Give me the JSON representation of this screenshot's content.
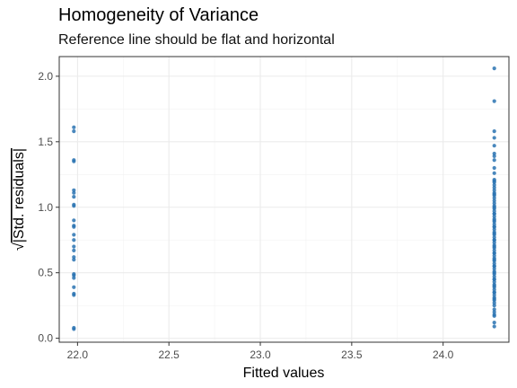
{
  "chart_data": {
    "type": "scatter",
    "title": "Homogeneity of Variance",
    "subtitle": "Reference line should be flat and horizontal",
    "xlabel": "Fitted values",
    "ylabel_prefix": "√",
    "ylabel": "|Std. residuals|",
    "xlim": [
      21.9,
      24.36
    ],
    "ylim": [
      -0.03,
      2.15
    ],
    "xticks": [
      "22.0",
      "22.5",
      "23.0",
      "23.5",
      "24.0"
    ],
    "yticks": [
      "0.0",
      "0.5",
      "1.0",
      "1.5",
      "2.0"
    ],
    "grid": true,
    "point_color": "#2a73b1",
    "series": [
      {
        "x": [
          21.98,
          21.98,
          21.98,
          21.98,
          21.98,
          21.98,
          21.98,
          21.98,
          21.98,
          21.98,
          21.98,
          21.98,
          21.98,
          21.98,
          21.98,
          21.98,
          21.98,
          21.98,
          21.98,
          21.98,
          21.98,
          21.98,
          21.98,
          21.98,
          21.98,
          21.98,
          24.28,
          24.28,
          24.28,
          24.28,
          24.28,
          24.28,
          24.28,
          24.28,
          24.28,
          24.28,
          24.28,
          24.28,
          24.28,
          24.28,
          24.28,
          24.28,
          24.28,
          24.28,
          24.28,
          24.28,
          24.28,
          24.28,
          24.28,
          24.28,
          24.28,
          24.28,
          24.28,
          24.28,
          24.28,
          24.28,
          24.28,
          24.28,
          24.28,
          24.28,
          24.28,
          24.28,
          24.28,
          24.28,
          24.28,
          24.28,
          24.28,
          24.28,
          24.28,
          24.28,
          24.28,
          24.28,
          24.28,
          24.28,
          24.28,
          24.28,
          24.28,
          24.28,
          24.28,
          24.28,
          24.28,
          24.28,
          24.28,
          24.28,
          24.28,
          24.28,
          24.28,
          24.28,
          24.28,
          24.28,
          24.28,
          24.28,
          24.28,
          24.28,
          24.28,
          24.28,
          24.28,
          24.28,
          24.28,
          24.28,
          24.28,
          24.28,
          24.28,
          24.28,
          24.28,
          24.28,
          24.28,
          24.28
        ],
        "y": [
          1.61,
          1.58,
          1.36,
          1.35,
          1.13,
          1.11,
          1.08,
          1.02,
          1.01,
          0.86,
          0.85,
          0.79,
          0.75,
          0.7,
          0.67,
          0.62,
          0.6,
          0.49,
          0.48,
          0.46,
          0.39,
          0.34,
          0.33,
          0.08,
          0.07,
          0.9,
          2.06,
          1.81,
          1.58,
          1.53,
          1.47,
          1.41,
          1.39,
          1.36,
          1.3,
          1.26,
          1.21,
          1.19,
          1.17,
          1.15,
          1.13,
          1.11,
          1.09,
          1.07,
          1.05,
          1.03,
          1.01,
          0.99,
          0.97,
          0.95,
          0.93,
          0.91,
          0.89,
          0.87,
          0.85,
          0.83,
          0.81,
          0.79,
          0.77,
          0.75,
          0.73,
          0.71,
          0.69,
          0.67,
          0.65,
          0.63,
          0.61,
          0.59,
          0.57,
          0.55,
          0.53,
          0.51,
          0.49,
          0.47,
          0.45,
          0.43,
          0.41,
          0.39,
          0.37,
          0.35,
          0.33,
          0.31,
          0.29,
          0.27,
          0.25,
          0.22,
          0.2,
          0.18,
          0.17,
          0.12,
          0.09,
          1.0,
          1.1,
          1.2,
          0.95,
          0.85,
          0.75,
          0.65,
          0.55,
          0.45,
          0.35,
          0.6,
          0.7,
          0.8,
          0.9,
          0.5,
          0.4,
          0.3
        ]
      }
    ]
  }
}
